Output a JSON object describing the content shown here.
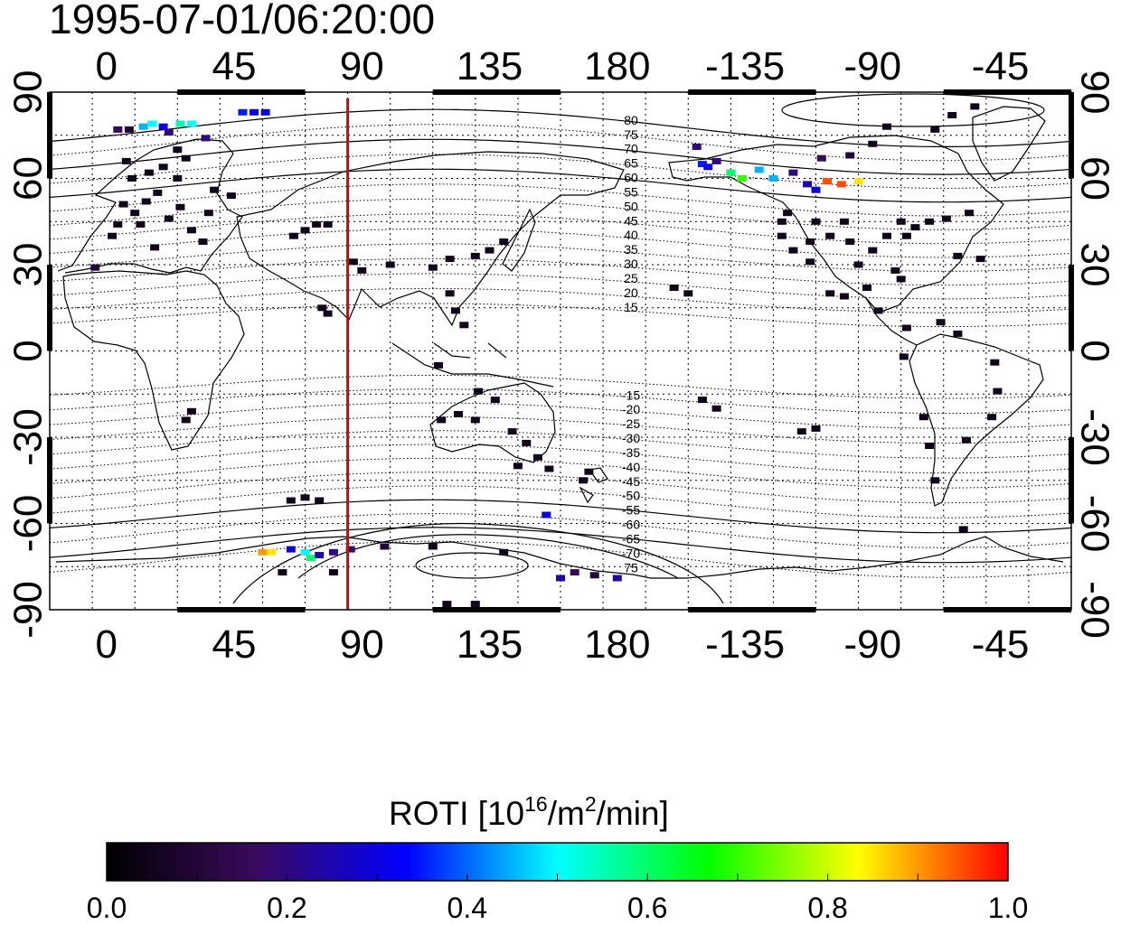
{
  "timestamp": "1995-07-01/06:20:00",
  "map": {
    "projection": "cylindrical",
    "lon_ticks": [
      "0",
      "45",
      "90",
      "135",
      "180",
      "-135",
      "-90",
      "-45"
    ],
    "lat_ticks": [
      "90",
      "60",
      "30",
      "0",
      "-30",
      "-60",
      "-90"
    ],
    "magnetic_latitude_labels_north": [
      "80",
      "75",
      "70",
      "65",
      "60",
      "55",
      "50",
      "45",
      "40",
      "35",
      "30",
      "25",
      "20",
      "15"
    ],
    "magnetic_latitude_labels_south": [
      "-15",
      "-20",
      "-25",
      "-30",
      "-35",
      "-40",
      "-45",
      "-50",
      "-55",
      "-60",
      "-65",
      "-70",
      "75"
    ],
    "midnight_meridian": {
      "longitude": 85,
      "color": "#e00000"
    },
    "grid": true
  },
  "colorbar": {
    "title_prefix": "ROTI  [10",
    "title_sup1": "16",
    "title_mid": "/m",
    "title_sup2": "2",
    "title_suffix": "/min]",
    "tick_labels": [
      "0.0",
      "0.2",
      "0.4",
      "0.6",
      "0.8",
      "1.0"
    ],
    "min": 0.0,
    "max": 1.0,
    "colors": [
      "#000000",
      "#3a0a5e",
      "#0000ff",
      "#00ffff",
      "#00ff00",
      "#ffff00",
      "#ff0000"
    ]
  },
  "roti_points": [
    {
      "lon": 4,
      "lat": 77,
      "v": 0.15
    },
    {
      "lon": 8,
      "lat": 77,
      "v": 0.1
    },
    {
      "lon": 13,
      "lat": 78,
      "v": 0.45
    },
    {
      "lon": 16,
      "lat": 79,
      "v": 0.5
    },
    {
      "lon": 20,
      "lat": 78,
      "v": 0.3
    },
    {
      "lon": 26,
      "lat": 79,
      "v": 0.55
    },
    {
      "lon": 30,
      "lat": 79,
      "v": 0.5
    },
    {
      "lon": 22,
      "lat": 76,
      "v": 0.2
    },
    {
      "lon": 35,
      "lat": 74,
      "v": 0.2
    },
    {
      "lon": 48,
      "lat": 83,
      "v": 0.35
    },
    {
      "lon": 52,
      "lat": 83,
      "v": 0.3
    },
    {
      "lon": 56,
      "lat": 83,
      "v": 0.3
    },
    {
      "lon": -4,
      "lat": 29,
      "v": 0.1
    },
    {
      "lon": 6,
      "lat": 51,
      "v": 0.05
    },
    {
      "lon": 10,
      "lat": 48,
      "v": 0.05
    },
    {
      "lon": 14,
      "lat": 52,
      "v": 0.05
    },
    {
      "lon": 18,
      "lat": 55,
      "v": 0.05
    },
    {
      "lon": 9,
      "lat": 60,
      "v": 0.05
    },
    {
      "lon": 15,
      "lat": 62,
      "v": 0.05
    },
    {
      "lon": 20,
      "lat": 64,
      "v": 0.05
    },
    {
      "lon": 25,
      "lat": 60,
      "v": 0.05
    },
    {
      "lon": 12,
      "lat": 44,
      "v": 0.05
    },
    {
      "lon": 4,
      "lat": 44,
      "v": 0.05
    },
    {
      "lon": 22,
      "lat": 46,
      "v": 0.05
    },
    {
      "lon": 26,
      "lat": 50,
      "v": 0.05
    },
    {
      "lon": 30,
      "lat": 42,
      "v": 0.05
    },
    {
      "lon": 34,
      "lat": 38,
      "v": 0.05
    },
    {
      "lon": 17,
      "lat": 36,
      "v": 0.05
    },
    {
      "lon": 2,
      "lat": 40,
      "v": 0.05
    },
    {
      "lon": 7,
      "lat": 66,
      "v": 0.05
    },
    {
      "lon": 25,
      "lat": 70,
      "v": 0.05
    },
    {
      "lon": 28,
      "lat": 67,
      "v": 0.05
    },
    {
      "lon": 36,
      "lat": 48,
      "v": 0.05
    },
    {
      "lon": 38,
      "lat": 56,
      "v": 0.05
    },
    {
      "lon": 44,
      "lat": 54,
      "v": 0.05
    },
    {
      "lon": 70,
      "lat": 42,
      "v": 0.05
    },
    {
      "lon": 74,
      "lat": 44,
      "v": 0.05
    },
    {
      "lon": 78,
      "lat": 44,
      "v": 0.05
    },
    {
      "lon": 66,
      "lat": 40,
      "v": 0.05
    },
    {
      "lon": 76,
      "lat": 15,
      "v": 0.05
    },
    {
      "lon": 78,
      "lat": 13,
      "v": 0.05
    },
    {
      "lon": 87,
      "lat": 31,
      "v": 0.05
    },
    {
      "lon": 90,
      "lat": 28,
      "v": 0.05
    },
    {
      "lon": 100,
      "lat": 30,
      "v": 0.05
    },
    {
      "lon": 115,
      "lat": 29,
      "v": 0.05
    },
    {
      "lon": 121,
      "lat": 32,
      "v": 0.05
    },
    {
      "lon": 130,
      "lat": 33,
      "v": 0.05
    },
    {
      "lon": 135,
      "lat": 35,
      "v": 0.05
    },
    {
      "lon": 140,
      "lat": 38,
      "v": 0.05
    },
    {
      "lon": 121,
      "lat": 20,
      "v": 0.05
    },
    {
      "lon": 123,
      "lat": 14,
      "v": 0.05
    },
    {
      "lon": 126,
      "lat": 9,
      "v": 0.05
    },
    {
      "lon": 117,
      "lat": -5,
      "v": 0.05
    },
    {
      "lon": 124,
      "lat": -22,
      "v": 0.05
    },
    {
      "lon": 118,
      "lat": -24,
      "v": 0.05
    },
    {
      "lon": 130,
      "lat": -24,
      "v": 0.05
    },
    {
      "lon": 131,
      "lat": -14,
      "v": 0.05
    },
    {
      "lon": 137,
      "lat": -17,
      "v": 0.05
    },
    {
      "lon": 143,
      "lat": -28,
      "v": 0.05
    },
    {
      "lon": 148,
      "lat": -32,
      "v": 0.05
    },
    {
      "lon": 152,
      "lat": -37,
      "v": 0.05
    },
    {
      "lon": 145,
      "lat": -40,
      "v": 0.05
    },
    {
      "lon": 156,
      "lat": -41,
      "v": 0.05
    },
    {
      "lon": 168,
      "lat": -45,
      "v": 0.05
    },
    {
      "lon": 170,
      "lat": -42,
      "v": 0.05
    },
    {
      "lon": 30,
      "lat": -21,
      "v": 0.05
    },
    {
      "lon": 28,
      "lat": -24,
      "v": 0.05
    },
    {
      "lon": 65,
      "lat": -52,
      "v": 0.05
    },
    {
      "lon": 70,
      "lat": -51,
      "v": 0.05
    },
    {
      "lon": 75,
      "lat": -52,
      "v": 0.05
    },
    {
      "lon": 55,
      "lat": -70,
      "v": 0.9
    },
    {
      "lon": 58,
      "lat": -70,
      "v": 0.85
    },
    {
      "lon": 65,
      "lat": -69,
      "v": 0.3
    },
    {
      "lon": 70,
      "lat": -70,
      "v": 0.5
    },
    {
      "lon": 72,
      "lat": -72,
      "v": 0.6
    },
    {
      "lon": 75,
      "lat": -71,
      "v": 0.25
    },
    {
      "lon": 80,
      "lat": -70,
      "v": 0.2
    },
    {
      "lon": 86,
      "lat": -69,
      "v": 0.15
    },
    {
      "lon": 98,
      "lat": -68,
      "v": 0.1
    },
    {
      "lon": 62,
      "lat": -77,
      "v": 0.05
    },
    {
      "lon": 80,
      "lat": -77,
      "v": 0.05
    },
    {
      "lon": 155,
      "lat": -57,
      "v": 0.3
    },
    {
      "lon": 160,
      "lat": -79,
      "v": 0.25
    },
    {
      "lon": 165,
      "lat": -77,
      "v": 0.15
    },
    {
      "lon": 172,
      "lat": -78,
      "v": 0.1
    },
    {
      "lon": 180,
      "lat": -79,
      "v": 0.25
    },
    {
      "lon": 120,
      "lat": -88,
      "v": 0.05
    },
    {
      "lon": 130,
      "lat": -88,
      "v": 0.05
    },
    {
      "lon": 140,
      "lat": -70,
      "v": 0.05
    },
    {
      "lon": 115,
      "lat": -68,
      "v": 0.05
    },
    {
      "lon": -152,
      "lat": 71,
      "v": 0.2
    },
    {
      "lon": -150,
      "lat": 65,
      "v": 0.35
    },
    {
      "lon": -148,
      "lat": 64,
      "v": 0.3
    },
    {
      "lon": -145,
      "lat": 66,
      "v": 0.2
    },
    {
      "lon": -140,
      "lat": 62,
      "v": 0.6
    },
    {
      "lon": -136,
      "lat": 60,
      "v": 0.7
    },
    {
      "lon": -130,
      "lat": 63,
      "v": 0.45
    },
    {
      "lon": -125,
      "lat": 60,
      "v": 0.45
    },
    {
      "lon": -118,
      "lat": 62,
      "v": 0.2
    },
    {
      "lon": -113,
      "lat": 58,
      "v": 0.25
    },
    {
      "lon": -106,
      "lat": 59,
      "v": 0.95
    },
    {
      "lon": -101,
      "lat": 58,
      "v": 0.95
    },
    {
      "lon": -95,
      "lat": 59,
      "v": 0.85
    },
    {
      "lon": -110,
      "lat": 56,
      "v": 0.3
    },
    {
      "lon": -108,
      "lat": 67,
      "v": 0.15
    },
    {
      "lon": -98,
      "lat": 68,
      "v": 0.1
    },
    {
      "lon": -90,
      "lat": 72,
      "v": 0.05
    },
    {
      "lon": -68,
      "lat": 77,
      "v": 0.05
    },
    {
      "lon": -62,
      "lat": 82,
      "v": 0.05
    },
    {
      "lon": -54,
      "lat": 85,
      "v": 0.05
    },
    {
      "lon": -85,
      "lat": 78,
      "v": 0.05
    },
    {
      "lon": -160,
      "lat": 22,
      "v": 0.05
    },
    {
      "lon": -155,
      "lat": 20,
      "v": 0.05
    },
    {
      "lon": -150,
      "lat": -17,
      "v": 0.05
    },
    {
      "lon": -145,
      "lat": -20,
      "v": 0.05
    },
    {
      "lon": -110,
      "lat": -27,
      "v": 0.05
    },
    {
      "lon": -115,
      "lat": -28,
      "v": 0.05
    },
    {
      "lon": -122,
      "lat": 40,
      "v": 0.05
    },
    {
      "lon": -118,
      "lat": 35,
      "v": 0.05
    },
    {
      "lon": -112,
      "lat": 38,
      "v": 0.05
    },
    {
      "lon": -105,
      "lat": 40,
      "v": 0.05
    },
    {
      "lon": -98,
      "lat": 38,
      "v": 0.05
    },
    {
      "lon": -90,
      "lat": 35,
      "v": 0.05
    },
    {
      "lon": -85,
      "lat": 40,
      "v": 0.05
    },
    {
      "lon": -78,
      "lat": 40,
      "v": 0.05
    },
    {
      "lon": -75,
      "lat": 43,
      "v": 0.05
    },
    {
      "lon": -80,
      "lat": 45,
      "v": 0.05
    },
    {
      "lon": -100,
      "lat": 45,
      "v": 0.05
    },
    {
      "lon": -110,
      "lat": 45,
      "v": 0.05
    },
    {
      "lon": -120,
      "lat": 48,
      "v": 0.05
    },
    {
      "lon": -122,
      "lat": 45,
      "v": 0.05
    },
    {
      "lon": -95,
      "lat": 30,
      "v": 0.05
    },
    {
      "lon": -82,
      "lat": 28,
      "v": 0.05
    },
    {
      "lon": -80,
      "lat": 25,
      "v": 0.05
    },
    {
      "lon": -70,
      "lat": 45,
      "v": 0.05
    },
    {
      "lon": -64,
      "lat": 46,
      "v": 0.05
    },
    {
      "lon": -56,
      "lat": 48,
      "v": 0.05
    },
    {
      "lon": -60,
      "lat": 33,
      "v": 0.05
    },
    {
      "lon": -52,
      "lat": 32,
      "v": 0.05
    },
    {
      "lon": -88,
      "lat": 14,
      "v": 0.05
    },
    {
      "lon": -78,
      "lat": 8,
      "v": 0.05
    },
    {
      "lon": -66,
      "lat": 10,
      "v": 0.05
    },
    {
      "lon": -60,
      "lat": 6,
      "v": 0.05
    },
    {
      "lon": -47,
      "lat": -4,
      "v": 0.05
    },
    {
      "lon": -46,
      "lat": -14,
      "v": 0.05
    },
    {
      "lon": -48,
      "lat": -23,
      "v": 0.05
    },
    {
      "lon": -57,
      "lat": -31,
      "v": 0.05
    },
    {
      "lon": -70,
      "lat": -33,
      "v": 0.05
    },
    {
      "lon": -68,
      "lat": -45,
      "v": 0.05
    },
    {
      "lon": -72,
      "lat": -23,
      "v": 0.05
    },
    {
      "lon": -79,
      "lat": -2,
      "v": 0.05
    },
    {
      "lon": -58,
      "lat": -62,
      "v": 0.05
    },
    {
      "lon": -105,
      "lat": 20,
      "v": 0.05
    },
    {
      "lon": -100,
      "lat": 19,
      "v": 0.05
    },
    {
      "lon": -92,
      "lat": 22,
      "v": 0.05
    },
    {
      "lon": -112,
      "lat": 31,
      "v": 0.05
    }
  ]
}
